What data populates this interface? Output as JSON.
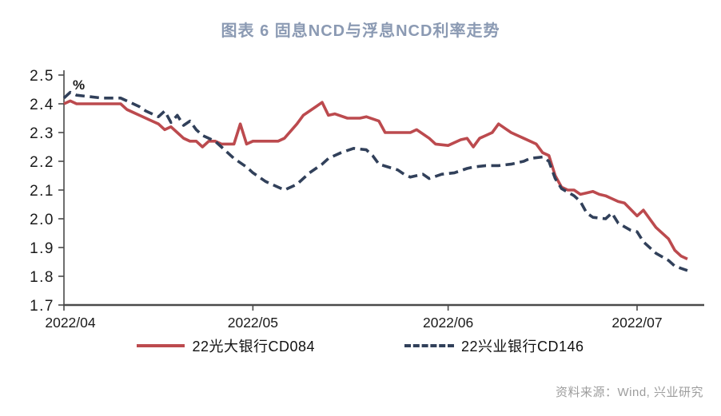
{
  "title": {
    "text": "图表 6 固息NCD与浮息NCD利率走势",
    "color": "#8b9ab3"
  },
  "source": {
    "text": "资料来源：Wind, 兴业研究"
  },
  "chart_data": {
    "type": "line",
    "title": "图表 6 固息NCD与浮息NCD利率走势",
    "unit_label": "%",
    "grid": false,
    "legend_position": "bottom",
    "axis_color": "#4a4a4a",
    "tick_label_color": "#1a1a1a",
    "x_axis": {
      "tick_labels": [
        "2022/04",
        "2022/05",
        "2022/06",
        "2022/07"
      ],
      "tick_days": [
        0,
        30,
        61,
        91
      ],
      "day_range": [
        0,
        99
      ],
      "date_range": [
        "2022-04-01",
        "2022-07-09"
      ]
    },
    "y_axis": {
      "min": 1.7,
      "max": 2.5,
      "step": 0.1,
      "tick_labels": [
        "2.5",
        "2.4",
        "2.3",
        "2.2",
        "2.1",
        "2.0",
        "1.9",
        "1.8",
        "1.7"
      ],
      "tick_values": [
        2.5,
        2.4,
        2.3,
        2.2,
        2.1,
        2.0,
        1.9,
        1.8,
        1.7
      ]
    },
    "series": [
      {
        "name": "22光大银行CD084",
        "color": "#bc4a4e",
        "style": "solid",
        "points": [
          [
            0,
            2.4
          ],
          [
            1,
            2.41
          ],
          [
            2,
            2.4
          ],
          [
            4,
            2.4
          ],
          [
            6,
            2.4
          ],
          [
            8,
            2.4
          ],
          [
            9,
            2.4
          ],
          [
            10,
            2.38
          ],
          [
            11,
            2.37
          ],
          [
            12,
            2.36
          ],
          [
            13,
            2.35
          ],
          [
            14,
            2.34
          ],
          [
            15,
            2.33
          ],
          [
            16,
            2.31
          ],
          [
            17,
            2.32
          ],
          [
            18,
            2.3
          ],
          [
            19,
            2.28
          ],
          [
            20,
            2.27
          ],
          [
            21,
            2.27
          ],
          [
            22,
            2.25
          ],
          [
            23,
            2.27
          ],
          [
            24,
            2.27
          ],
          [
            25,
            2.26
          ],
          [
            26,
            2.26
          ],
          [
            27,
            2.26
          ],
          [
            28,
            2.33
          ],
          [
            29,
            2.26
          ],
          [
            30,
            2.27
          ],
          [
            32,
            2.27
          ],
          [
            34,
            2.27
          ],
          [
            35,
            2.28
          ],
          [
            37,
            2.33
          ],
          [
            38,
            2.36
          ],
          [
            40,
            2.39
          ],
          [
            41,
            2.405
          ],
          [
            42,
            2.36
          ],
          [
            43,
            2.365
          ],
          [
            45,
            2.35
          ],
          [
            47,
            2.35
          ],
          [
            48,
            2.355
          ],
          [
            50,
            2.34
          ],
          [
            51,
            2.3
          ],
          [
            53,
            2.3
          ],
          [
            55,
            2.3
          ],
          [
            56,
            2.31
          ],
          [
            58,
            2.28
          ],
          [
            59,
            2.26
          ],
          [
            61,
            2.255
          ],
          [
            63,
            2.275
          ],
          [
            64,
            2.28
          ],
          [
            65,
            2.25
          ],
          [
            66,
            2.28
          ],
          [
            67,
            2.29
          ],
          [
            68,
            2.3
          ],
          [
            69,
            2.33
          ],
          [
            71,
            2.3
          ],
          [
            72,
            2.29
          ],
          [
            73,
            2.28
          ],
          [
            75,
            2.26
          ],
          [
            76,
            2.23
          ],
          [
            77,
            2.22
          ],
          [
            78,
            2.15
          ],
          [
            79,
            2.11
          ],
          [
            80,
            2.1
          ],
          [
            81,
            2.1
          ],
          [
            82,
            2.085
          ],
          [
            83,
            2.09
          ],
          [
            84,
            2.095
          ],
          [
            85,
            2.085
          ],
          [
            86,
            2.08
          ],
          [
            88,
            2.06
          ],
          [
            89,
            2.055
          ],
          [
            91,
            2.01
          ],
          [
            92,
            2.03
          ],
          [
            94,
            1.97
          ],
          [
            96,
            1.93
          ],
          [
            97,
            1.89
          ],
          [
            98,
            1.87
          ],
          [
            99,
            1.86
          ]
        ]
      },
      {
        "name": "22兴业银行CD146",
        "color": "#31405a",
        "style": "dashed",
        "points": [
          [
            0,
            2.42
          ],
          [
            1,
            2.44
          ],
          [
            2,
            2.43
          ],
          [
            4,
            2.425
          ],
          [
            6,
            2.42
          ],
          [
            8,
            2.42
          ],
          [
            9,
            2.42
          ],
          [
            10,
            2.41
          ],
          [
            12,
            2.39
          ],
          [
            13,
            2.375
          ],
          [
            15,
            2.355
          ],
          [
            16,
            2.375
          ],
          [
            17,
            2.335
          ],
          [
            18,
            2.36
          ],
          [
            19,
            2.325
          ],
          [
            20,
            2.34
          ],
          [
            21,
            2.31
          ],
          [
            22,
            2.29
          ],
          [
            24,
            2.27
          ],
          [
            25,
            2.25
          ],
          [
            27,
            2.21
          ],
          [
            29,
            2.18
          ],
          [
            30,
            2.16
          ],
          [
            32,
            2.13
          ],
          [
            34,
            2.11
          ],
          [
            35,
            2.1
          ],
          [
            37,
            2.12
          ],
          [
            39,
            2.16
          ],
          [
            41,
            2.19
          ],
          [
            42,
            2.21
          ],
          [
            44,
            2.23
          ],
          [
            46,
            2.245
          ],
          [
            48,
            2.24
          ],
          [
            49,
            2.22
          ],
          [
            50,
            2.19
          ],
          [
            53,
            2.17
          ],
          [
            54,
            2.155
          ],
          [
            55,
            2.145
          ],
          [
            57,
            2.155
          ],
          [
            58,
            2.14
          ],
          [
            60,
            2.155
          ],
          [
            62,
            2.16
          ],
          [
            64,
            2.175
          ],
          [
            65,
            2.18
          ],
          [
            67,
            2.185
          ],
          [
            69,
            2.185
          ],
          [
            71,
            2.19
          ],
          [
            73,
            2.2
          ],
          [
            74,
            2.21
          ],
          [
            76,
            2.215
          ],
          [
            77,
            2.2
          ],
          [
            78,
            2.14
          ],
          [
            79,
            2.105
          ],
          [
            81,
            2.08
          ],
          [
            82,
            2.06
          ],
          [
            83,
            2.02
          ],
          [
            84,
            2.005
          ],
          [
            86,
            2.0
          ],
          [
            87,
            2.02
          ],
          [
            88,
            1.985
          ],
          [
            90,
            1.96
          ],
          [
            91,
            1.955
          ],
          [
            92,
            1.92
          ],
          [
            94,
            1.88
          ],
          [
            96,
            1.855
          ],
          [
            97,
            1.835
          ],
          [
            99,
            1.82
          ]
        ]
      }
    ]
  }
}
